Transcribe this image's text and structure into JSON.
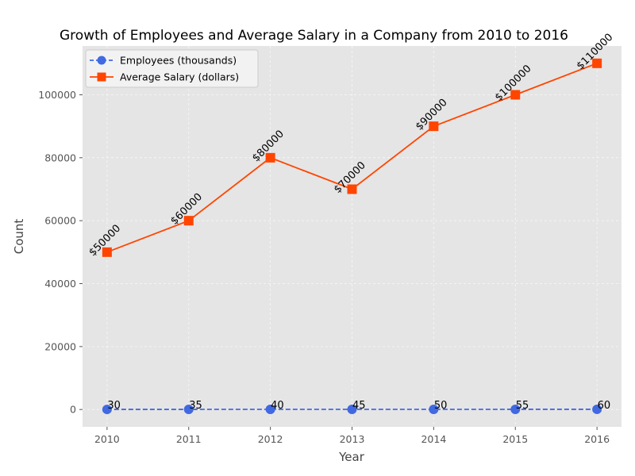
{
  "chart_data": {
    "type": "line",
    "title": "Growth of Employees and Average Salary in a Company from 2010 to 2016",
    "xlabel": "Year",
    "ylabel": "Count",
    "x": [
      2010,
      2011,
      2012,
      2013,
      2014,
      2015,
      2016
    ],
    "x_tick_labels": [
      "2010",
      "2011",
      "2012",
      "2013",
      "2014",
      "2015",
      "2016"
    ],
    "y_ticks": [
      0,
      20000,
      40000,
      60000,
      80000,
      100000
    ],
    "y_tick_labels": [
      "0",
      "20000",
      "40000",
      "60000",
      "80000",
      "100000"
    ],
    "ylim": [
      -5500,
      115500
    ],
    "xlim": [
      2009.7,
      2016.3
    ],
    "grid": true,
    "legend_position": "top-left",
    "series": [
      {
        "name": "Employees (thousands)",
        "values": [
          30,
          35,
          40,
          45,
          50,
          55,
          60
        ],
        "data_labels": [
          "30",
          "35",
          "40",
          "45",
          "50",
          "55",
          "60"
        ],
        "color": "#4169e1",
        "marker": "circle",
        "line_style": "dashed"
      },
      {
        "name": "Average Salary (dollars)",
        "values": [
          50000,
          60000,
          80000,
          70000,
          90000,
          100000,
          110000
        ],
        "data_labels": [
          "$50000",
          "$60000",
          "$80000",
          "$70000",
          "$90000",
          "$100000",
          "$110000"
        ],
        "color": "#ff4500",
        "marker": "square",
        "line_style": "solid"
      }
    ]
  },
  "colors": {
    "plot_background": "#e5e5e5",
    "grid": "#ffffff"
  }
}
